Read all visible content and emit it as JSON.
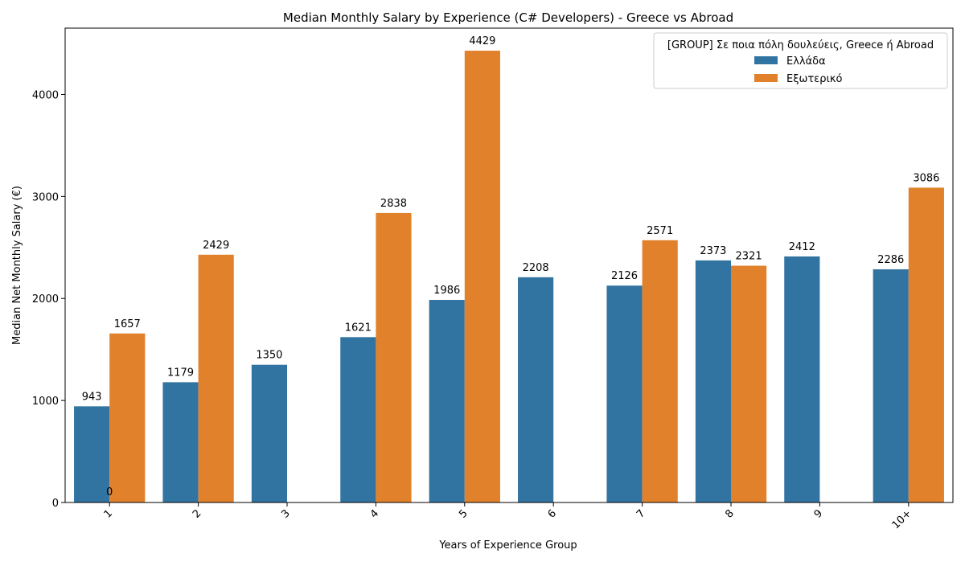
{
  "chart_data": {
    "type": "bar",
    "title": "Median Monthly Salary by Experience (C# Developers) - Greece vs Abroad",
    "xlabel": "Years of Experience Group",
    "ylabel": "Median Net Monthly Salary (€)",
    "categories": [
      "1",
      "2",
      "3",
      "4",
      "5",
      "6",
      "7",
      "8",
      "9",
      "10+"
    ],
    "ylim": [
      0,
      4650
    ],
    "yticks": [
      0,
      1000,
      2000,
      3000,
      4000
    ],
    "legend": {
      "title": "[GROUP] Σε ποια πόλη δουλεύεις, Greece ή Abroad",
      "placement": "top-right"
    },
    "series": [
      {
        "name": "Ελλάδα",
        "color": "#3274a1",
        "values": [
          943,
          1179,
          1350,
          1621,
          1986,
          2208,
          2126,
          2373,
          2412,
          2286
        ]
      },
      {
        "name": "Εξωτερικό",
        "color": "#e1812c",
        "values": [
          1657,
          2429,
          null,
          2838,
          4429,
          null,
          2571,
          2321,
          null,
          3086
        ]
      }
    ],
    "annotations": [
      "0"
    ],
    "grid": false
  }
}
